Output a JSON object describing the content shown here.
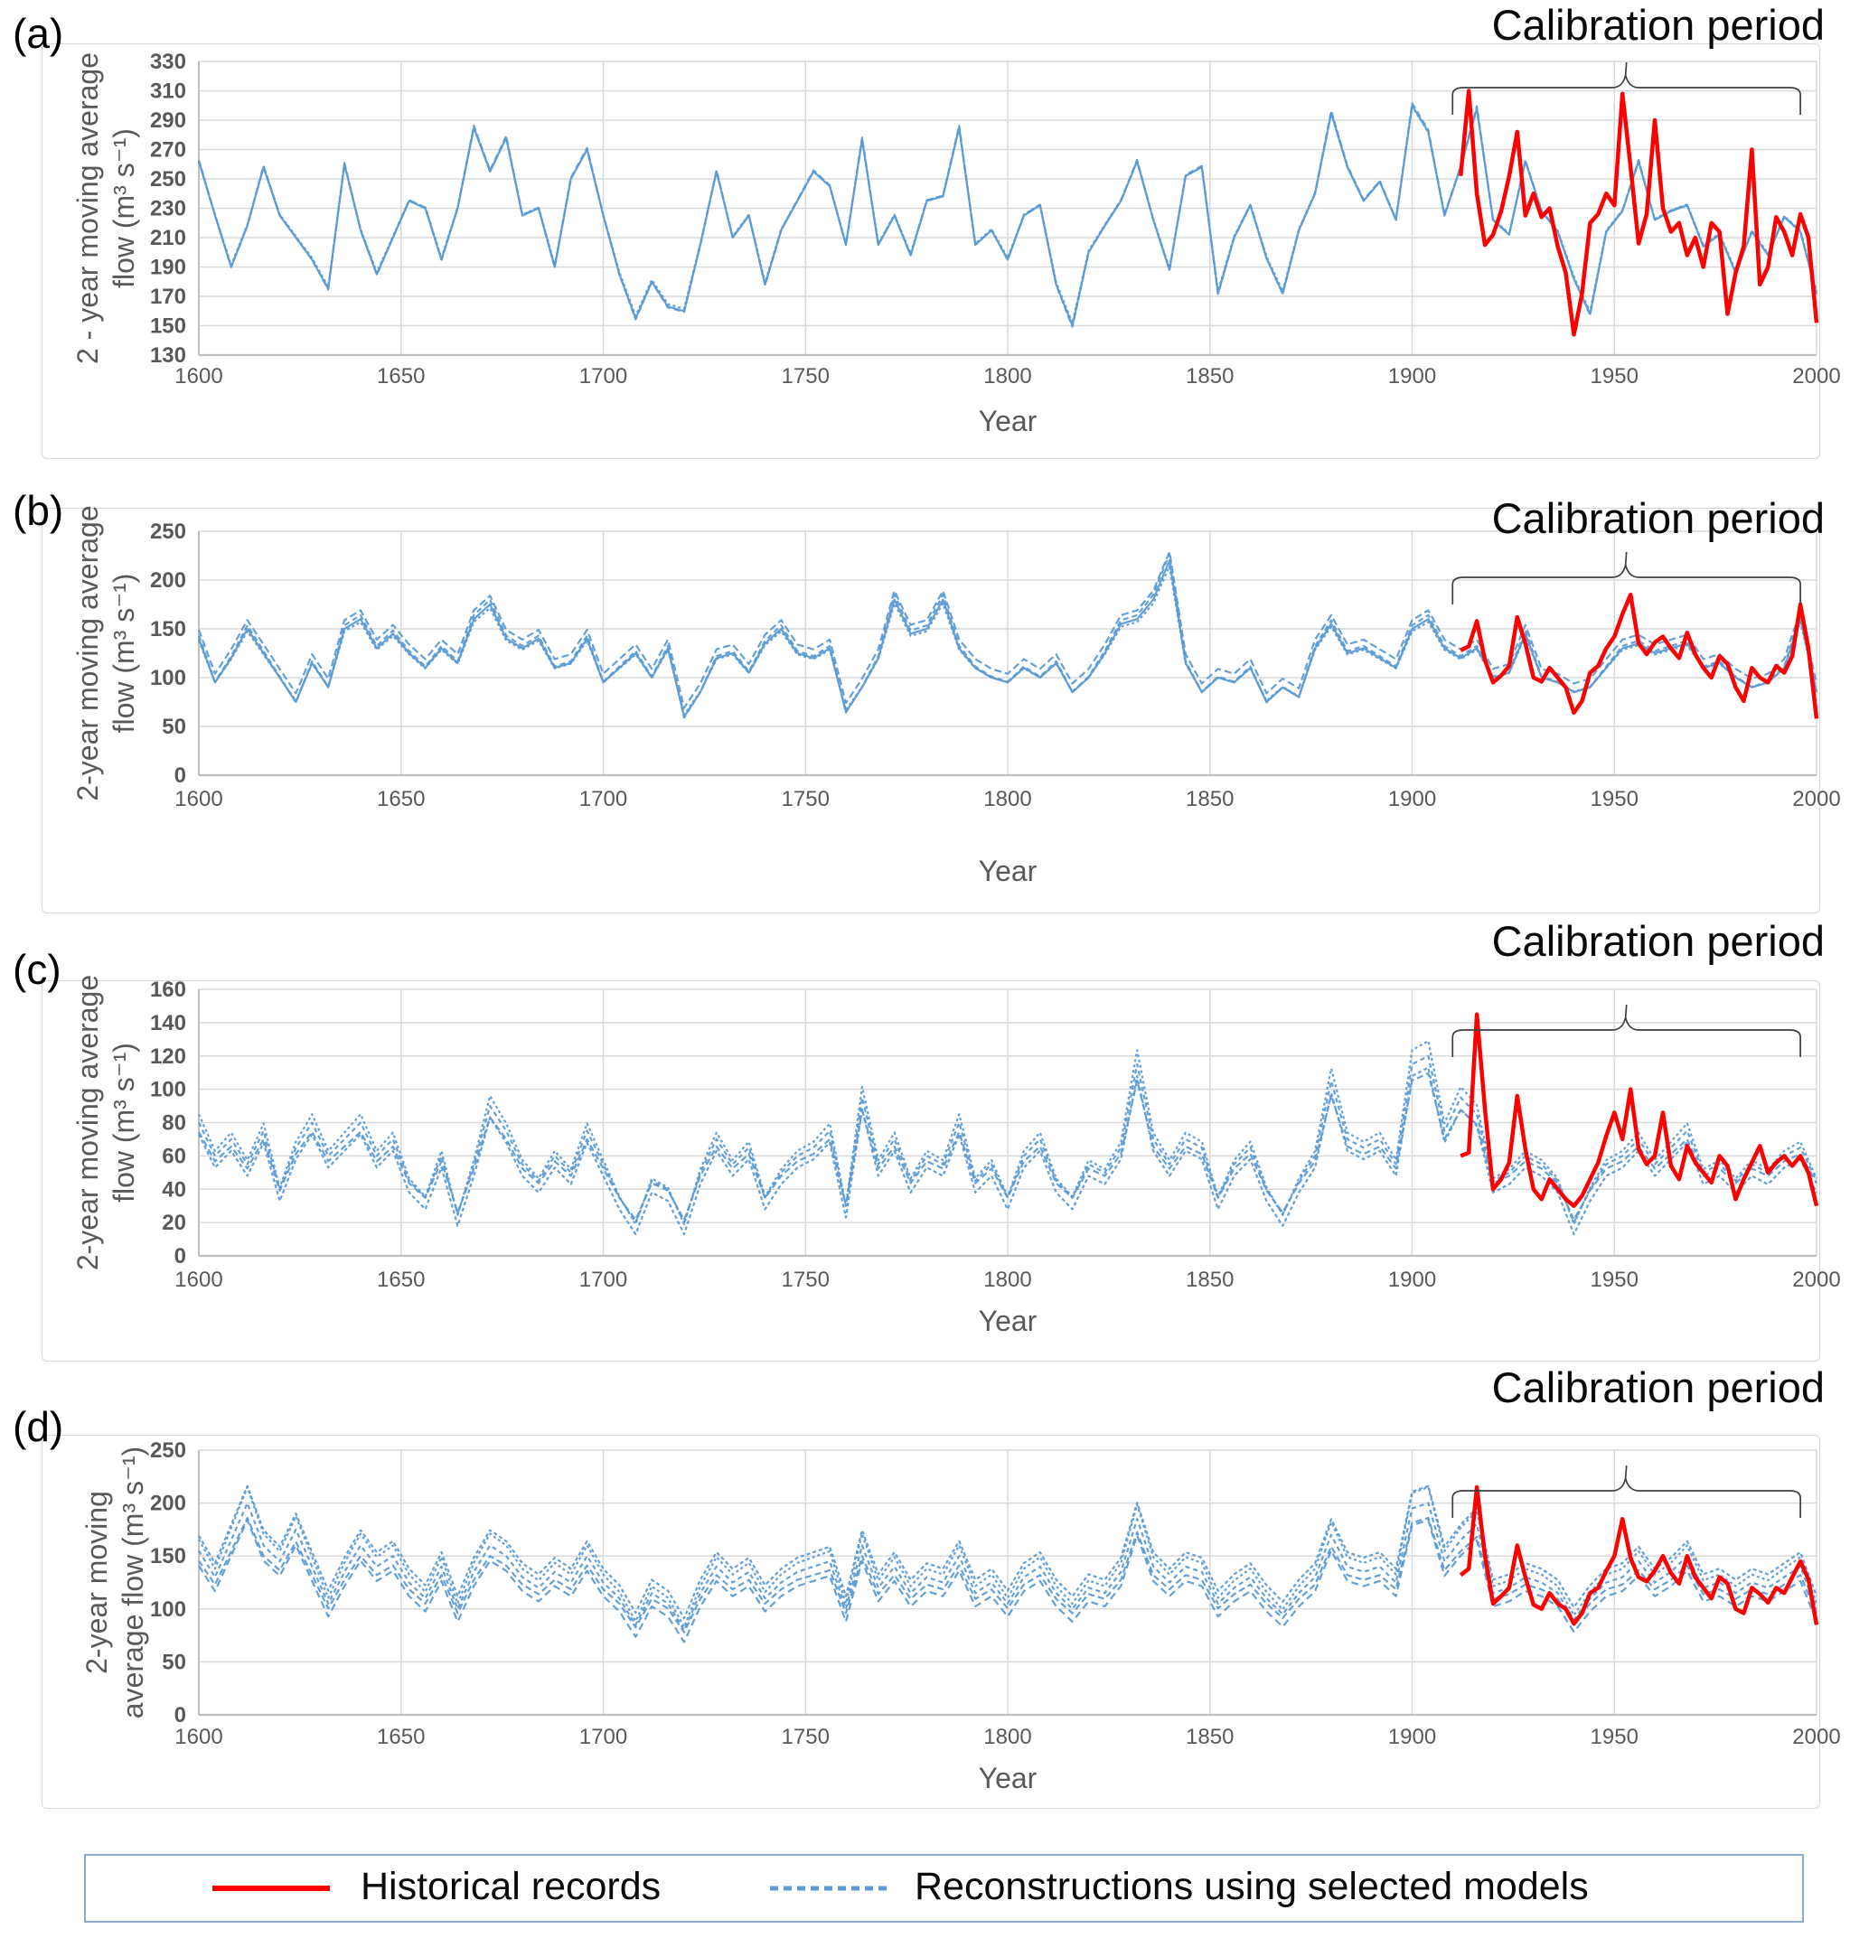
{
  "colors": {
    "series_blue": "#5B9BD5",
    "series_red": "#FF0000",
    "grid": "#D9D9D9",
    "axis": "#BFBFBF",
    "tick_text": "#595959",
    "brace": "#3F3F3F",
    "legend_border": "#8FA9C9"
  },
  "legend": {
    "items": [
      {
        "label": "Historical records",
        "style": "solid",
        "color_key": "series_red"
      },
      {
        "label": "Reconstructions using selected models",
        "style": "dashed",
        "color_key": "series_blue"
      }
    ]
  },
  "chart_data": [
    {
      "type": "line",
      "letter": "(a)",
      "title": "Calibration period",
      "xlabel": "Year",
      "ylabel_lines": [
        "2 - year moving average",
        "flow (m³ s⁻¹)"
      ],
      "xlim": [
        1600,
        2000
      ],
      "xstep": 50,
      "ylim": [
        130,
        330
      ],
      "ystep": 20,
      "brace_years": [
        1910,
        1996
      ],
      "reconstructions": {
        "x_start": 1600,
        "x_step": 4,
        "values": [
          262,
          225,
          190,
          218,
          258,
          225,
          210,
          195,
          175,
          260,
          215,
          185,
          210,
          235,
          230,
          195,
          230,
          285,
          255,
          278,
          225,
          230,
          190,
          250,
          270,
          225,
          185,
          155,
          180,
          163,
          160,
          205,
          255,
          210,
          225,
          178,
          215,
          235,
          255,
          245,
          205,
          277,
          205,
          225,
          198,
          235,
          238,
          285,
          205,
          215,
          195,
          225,
          232,
          178,
          150,
          200,
          218,
          235,
          262,
          222,
          188,
          252,
          258,
          172,
          210,
          232,
          196,
          172,
          215,
          240,
          295,
          258,
          235,
          248,
          222,
          300,
          282,
          225,
          258,
          298,
          222,
          212,
          262,
          228,
          214,
          182,
          158,
          214,
          228,
          262,
          222,
          228,
          232,
          204,
          212,
          186,
          214,
          198,
          224,
          214,
          172
        ],
        "variants": [
          {
            "dash": "",
            "scale": 1.0,
            "offset": 0
          },
          {
            "dash": "7 4",
            "scale": 1.015,
            "offset": -3
          },
          {
            "dash": "3 3",
            "scale": 0.985,
            "offset": 4
          }
        ]
      },
      "historical": {
        "x_start": 1912,
        "x_step": 2,
        "values": [
          252,
          310,
          240,
          205,
          212,
          228,
          252,
          282,
          225,
          240,
          224,
          230,
          204,
          186,
          144,
          172,
          220,
          226,
          240,
          232,
          308,
          258,
          206,
          226,
          290,
          230,
          214,
          220,
          198,
          210,
          190,
          220,
          214,
          158,
          186,
          204,
          270,
          178,
          190,
          224,
          214,
          198,
          226,
          210,
          152
        ]
      }
    },
    {
      "type": "line",
      "letter": "(b)",
      "title": "Calibration period",
      "xlabel": "Year",
      "ylabel_lines": [
        "2-year moving average",
        "flow (m³ s⁻¹)"
      ],
      "xlim": [
        1600,
        2000
      ],
      "xstep": 50,
      "ylim": [
        0,
        250
      ],
      "ystep": 50,
      "brace_years": [
        1910,
        1996
      ],
      "reconstructions": {
        "x_start": 1600,
        "x_step": 4,
        "values": [
          140,
          95,
          120,
          150,
          125,
          100,
          75,
          115,
          90,
          150,
          160,
          130,
          145,
          125,
          110,
          130,
          115,
          160,
          175,
          140,
          130,
          140,
          110,
          115,
          140,
          95,
          110,
          125,
          100,
          130,
          60,
          85,
          120,
          125,
          105,
          135,
          150,
          125,
          120,
          130,
          65,
          90,
          120,
          180,
          145,
          150,
          180,
          130,
          110,
          100,
          95,
          110,
          100,
          115,
          85,
          100,
          125,
          155,
          160,
          180,
          220,
          115,
          85,
          100,
          95,
          110,
          75,
          90,
          80,
          130,
          155,
          125,
          130,
          120,
          110,
          150,
          160,
          130,
          120,
          130,
          100,
          105,
          145,
          100,
          95,
          85,
          90,
          110,
          130,
          135,
          125,
          130,
          135,
          110,
          115,
          100,
          90,
          95,
          110,
          160,
          85
        ],
        "variants": [
          {
            "dash": "",
            "scale": 1.0,
            "offset": 0
          },
          {
            "dash": "6 4",
            "scale": 1.05,
            "offset": -4
          },
          {
            "dash": "3 3",
            "scale": 0.95,
            "offset": 5
          },
          {
            "dash": "8 4",
            "scale": 1.0,
            "offset": 9
          }
        ]
      },
      "historical": {
        "x_start": 1912,
        "x_step": 2,
        "values": [
          128,
          132,
          158,
          118,
          95,
          102,
          112,
          162,
          135,
          100,
          96,
          110,
          100,
          90,
          64,
          76,
          105,
          112,
          130,
          142,
          165,
          185,
          135,
          124,
          136,
          142,
          130,
          120,
          146,
          124,
          110,
          100,
          122,
          114,
          90,
          76,
          110,
          100,
          95,
          112,
          105,
          122,
          175,
          130,
          58
        ]
      }
    },
    {
      "type": "line",
      "letter": "(c)",
      "title": "Calibration period",
      "xlabel": "Year",
      "ylabel_lines": [
        "2-year moving average",
        "flow (m³ s⁻¹)"
      ],
      "xlim": [
        1600,
        2000
      ],
      "xstep": 50,
      "ylim": [
        0,
        160
      ],
      "ystep": 20,
      "brace_years": [
        1910,
        1996
      ],
      "reconstructions": {
        "x_start": 1600,
        "x_step": 4,
        "values": [
          80,
          60,
          70,
          55,
          75,
          40,
          65,
          80,
          60,
          70,
          80,
          60,
          70,
          45,
          35,
          60,
          25,
          55,
          90,
          75,
          55,
          45,
          60,
          50,
          75,
          55,
          35,
          20,
          45,
          40,
          20,
          50,
          70,
          55,
          65,
          35,
          50,
          60,
          65,
          75,
          30,
          95,
          55,
          70,
          45,
          60,
          55,
          80,
          45,
          55,
          35,
          60,
          70,
          45,
          35,
          55,
          50,
          65,
          115,
          70,
          55,
          70,
          65,
          35,
          55,
          65,
          40,
          25,
          45,
          60,
          105,
          70,
          65,
          70,
          55,
          115,
          120,
          75,
          95,
          85,
          45,
          50,
          60,
          55,
          45,
          20,
          40,
          55,
          60,
          70,
          55,
          65,
          75,
          50,
          55,
          45,
          55,
          50,
          60,
          65,
          45
        ],
        "variants": [
          {
            "dash": "5 4",
            "scale": 1.0,
            "offset": 0
          },
          {
            "dash": "3 3",
            "scale": 1.1,
            "offset": -3
          },
          {
            "dash": "7 4",
            "scale": 0.88,
            "offset": 4
          },
          {
            "dash": "4 3",
            "scale": 1.0,
            "offset": -7
          }
        ]
      },
      "historical": {
        "x_start": 1912,
        "x_step": 2,
        "values": [
          60,
          62,
          145,
          88,
          40,
          46,
          56,
          96,
          64,
          40,
          34,
          46,
          40,
          34,
          30,
          36,
          46,
          56,
          72,
          86,
          70,
          100,
          64,
          55,
          60,
          86,
          54,
          46,
          66,
          56,
          50,
          44,
          60,
          54,
          34,
          46,
          56,
          66,
          50,
          56,
          60,
          54,
          60,
          50,
          30
        ]
      }
    },
    {
      "type": "line",
      "letter": "(d)",
      "title": "Calibration period",
      "xlabel": "Year",
      "ylabel_lines": [
        "2-year moving",
        "average flow (m³ s⁻¹)"
      ],
      "xlim": [
        1600,
        2000
      ],
      "xstep": 50,
      "ylim": [
        0,
        250
      ],
      "ystep": 50,
      "brace_years": [
        1910,
        1996
      ],
      "reconstructions": {
        "x_start": 1600,
        "x_step": 4,
        "values": [
          155,
          130,
          165,
          200,
          160,
          145,
          175,
          140,
          105,
          135,
          160,
          140,
          150,
          125,
          110,
          140,
          100,
          135,
          160,
          150,
          130,
          120,
          135,
          125,
          150,
          125,
          110,
          85,
          115,
          105,
          80,
          115,
          140,
          125,
          135,
          110,
          125,
          135,
          140,
          145,
          100,
          160,
          120,
          140,
          115,
          130,
          125,
          150,
          115,
          125,
          105,
          130,
          140,
          115,
          100,
          120,
          115,
          135,
          185,
          140,
          125,
          140,
          135,
          105,
          120,
          130,
          110,
          95,
          115,
          130,
          170,
          140,
          135,
          140,
          125,
          195,
          200,
          145,
          165,
          180,
          115,
          120,
          130,
          125,
          115,
          90,
          110,
          125,
          130,
          145,
          125,
          135,
          150,
          120,
          125,
          115,
          125,
          120,
          130,
          140,
          100
        ],
        "variants": [
          {
            "dash": "5 4",
            "scale": 1.0,
            "offset": 0
          },
          {
            "dash": "3 3",
            "scale": 1.1,
            "offset": -5
          },
          {
            "dash": "7 4",
            "scale": 0.9,
            "offset": 6
          },
          {
            "dash": "4 3",
            "scale": 1.04,
            "offset": 8
          },
          {
            "dash": "8 5",
            "scale": 0.96,
            "offset": -8
          }
        ]
      },
      "historical": {
        "x_start": 1912,
        "x_step": 2,
        "values": [
          132,
          138,
          215,
          150,
          105,
          112,
          120,
          160,
          130,
          104,
          100,
          115,
          105,
          100,
          86,
          96,
          115,
          120,
          136,
          150,
          185,
          148,
          130,
          126,
          136,
          150,
          134,
          124,
          150,
          130,
          120,
          110,
          130,
          124,
          100,
          96,
          120,
          114,
          106,
          120,
          115,
          130,
          145,
          128,
          85
        ]
      }
    }
  ]
}
